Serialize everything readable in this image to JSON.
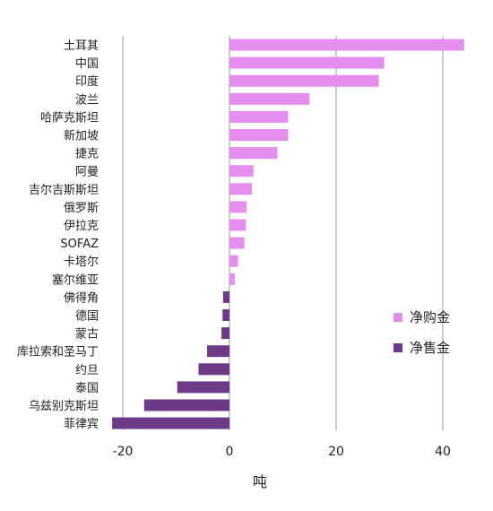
{
  "chart_data": {
    "type": "bar",
    "orientation": "horizontal",
    "xlabel": "吨",
    "xlim": [
      -22,
      45
    ],
    "xticks": [
      -20,
      0,
      20,
      40
    ],
    "grid": "vertical",
    "legend_position": "right",
    "categories": [
      "土耳其",
      "中国",
      "印度",
      "波兰",
      "哈萨克斯坦",
      "新加坡",
      "捷克",
      "阿曼",
      "吉尔吉斯斯坦",
      "俄罗斯",
      "伊拉克",
      "SOFAZ",
      "卡塔尔",
      "塞尔维亚",
      "佛得角",
      "德国",
      "蒙古",
      "库拉索和圣马丁",
      "约旦",
      "泰国",
      "乌兹别克斯坦",
      "菲律宾"
    ],
    "values": [
      44,
      29,
      28,
      15,
      11,
      11,
      9,
      4.5,
      4.2,
      3.2,
      3.1,
      2.8,
      1.6,
      1.0,
      -1.2,
      -1.3,
      -1.5,
      -4.2,
      -5.8,
      -9.8,
      -16,
      -22
    ],
    "series": [
      {
        "name": "净购金",
        "color": "#e58ef0"
      },
      {
        "name": "净售金",
        "color": "#6e3a87"
      }
    ]
  }
}
